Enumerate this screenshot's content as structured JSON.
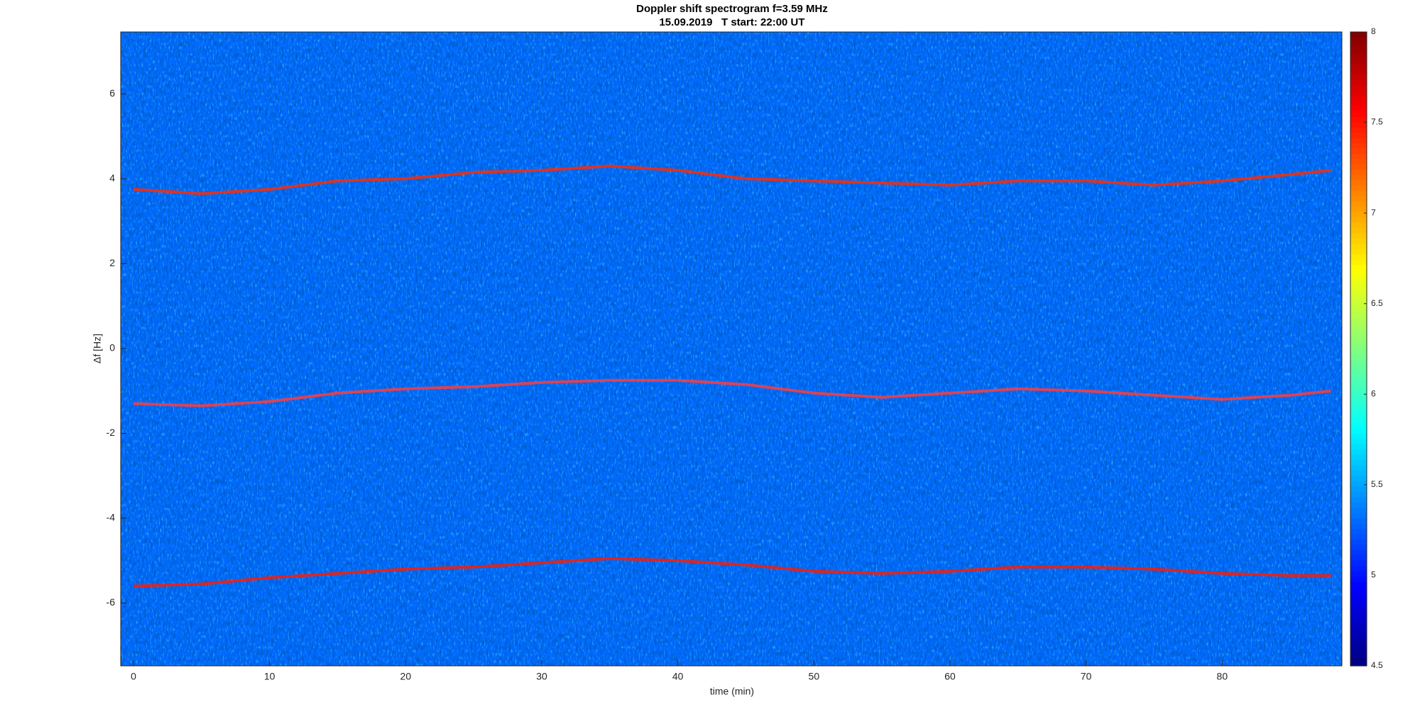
{
  "chart_data": {
    "type": "spectrogram",
    "title": "Doppler shift spectrogram f=3.59 MHz",
    "subtitle": "15.09.2019   T start: 22:00 UT",
    "xlabel": "time (min)",
    "ylabel": "Δf [Hz]",
    "xlim": [
      -0.94,
      88.8
    ],
    "ylim": [
      -7.48,
      7.46
    ],
    "xticks": [
      0,
      10,
      20,
      30,
      40,
      50,
      60,
      70,
      80
    ],
    "yticks": [
      -6,
      -4,
      -2,
      0,
      2,
      4,
      6
    ],
    "colormap": "jet",
    "clim": [
      4.5,
      8
    ],
    "cticks": [
      4.5,
      5,
      5.5,
      6,
      6.5,
      7,
      7.5,
      8
    ],
    "background_value": 5.3,
    "x": [
      0,
      5,
      10,
      15,
      20,
      25,
      30,
      35,
      40,
      45,
      50,
      55,
      60,
      65,
      70,
      75,
      80,
      85,
      88
    ],
    "series": [
      {
        "color": "#ff2a00",
        "values": [
          3.75,
          3.65,
          3.75,
          3.95,
          4.0,
          4.15,
          4.2,
          4.3,
          4.2,
          4.0,
          3.95,
          3.9,
          3.85,
          3.95,
          3.95,
          3.85,
          3.95,
          4.1,
          4.2
        ]
      },
      {
        "color": "#ff3c3c",
        "values": [
          -1.3,
          -1.35,
          -1.25,
          -1.05,
          -0.95,
          -0.9,
          -0.8,
          -0.75,
          -0.75,
          -0.85,
          -1.05,
          -1.15,
          -1.05,
          -0.95,
          -1.0,
          -1.1,
          -1.2,
          -1.1,
          -1.0
        ]
      },
      {
        "color": "#ff1a00",
        "values": [
          -5.6,
          -5.55,
          -5.4,
          -5.3,
          -5.2,
          -5.15,
          -5.05,
          -4.95,
          -5.0,
          -5.1,
          -5.25,
          -5.3,
          -5.25,
          -5.15,
          -5.15,
          -5.2,
          -5.3,
          -5.35,
          -5.35
        ]
      }
    ]
  }
}
